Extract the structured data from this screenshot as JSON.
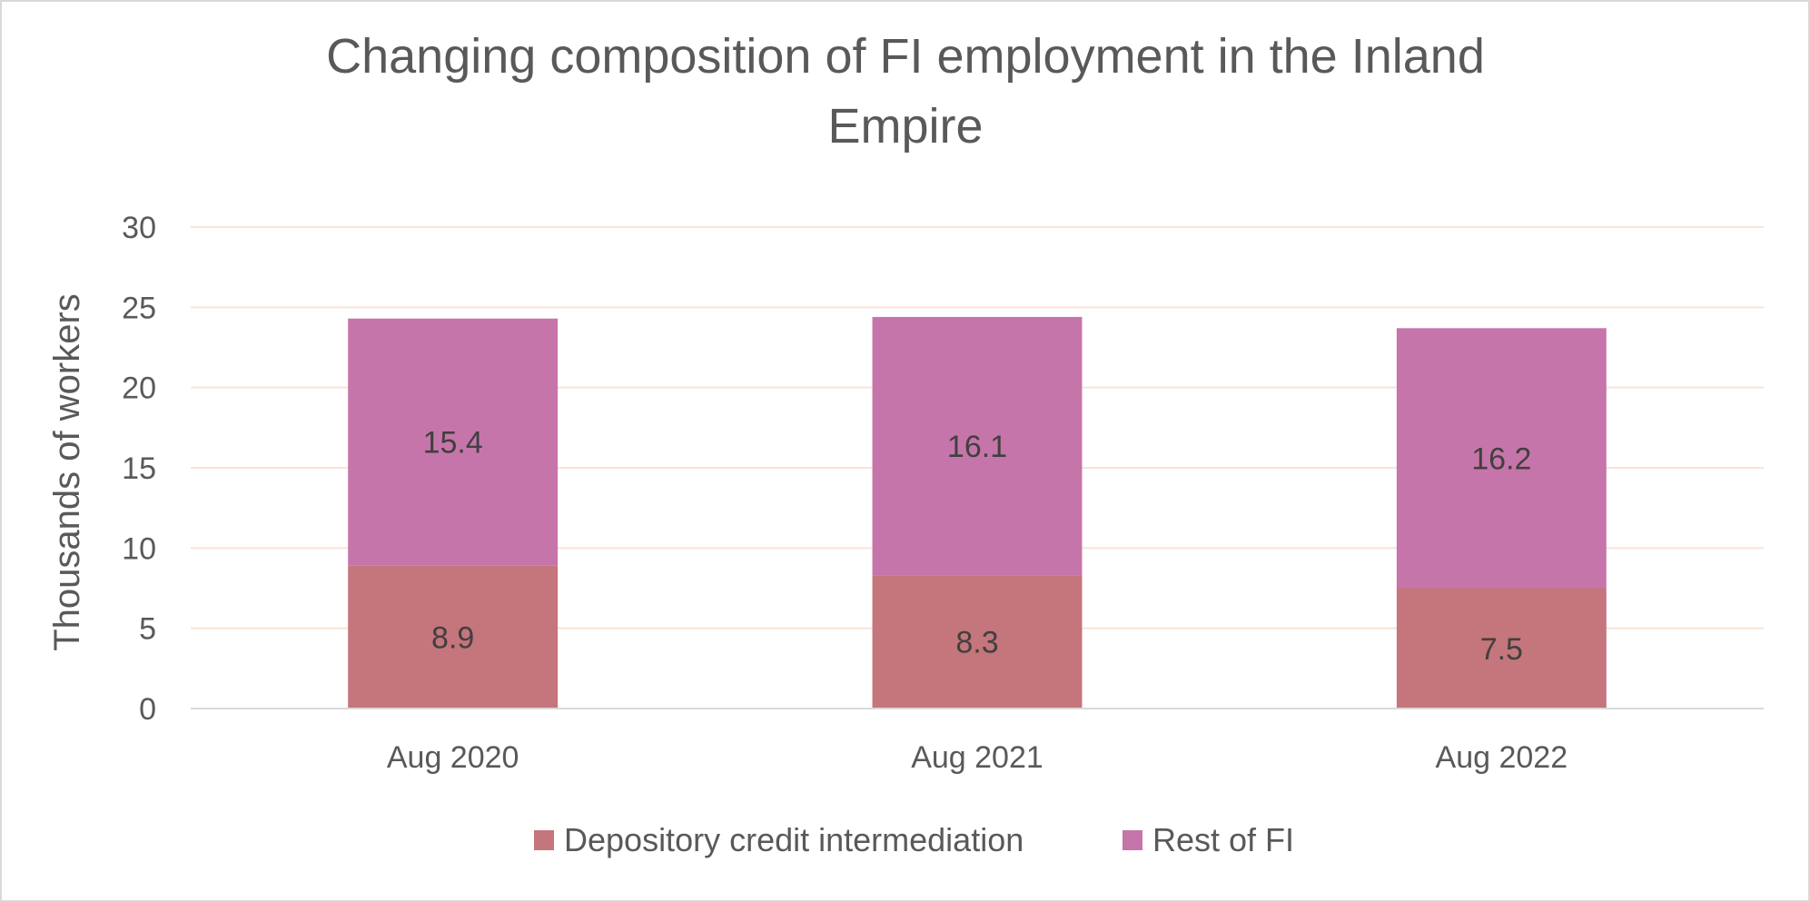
{
  "chart_data": {
    "type": "bar",
    "stacked": true,
    "title_lines": [
      "Changing composition of FI employment in the Inland",
      "Empire"
    ],
    "xlabel": "",
    "ylabel": "Thousands of workers",
    "categories": [
      "Aug 2020",
      "Aug 2021",
      "Aug 2022"
    ],
    "ylim": [
      0,
      30
    ],
    "yticks": [
      0,
      5,
      10,
      15,
      20,
      25,
      30
    ],
    "grid": true,
    "legend_position": "bottom",
    "series": [
      {
        "name": "Depository credit intermediation",
        "values": [
          8.9,
          8.3,
          7.5
        ],
        "labels": [
          "8.9",
          "8.3",
          "7.5"
        ],
        "color": "#c5757c"
      },
      {
        "name": "Rest of FI",
        "values": [
          15.4,
          16.1,
          16.2
        ],
        "labels": [
          "15.4",
          "16.1",
          "16.2"
        ],
        "color": "#c675aa"
      }
    ],
    "colors": {
      "gridline": "#fbe3d6",
      "axis_line": "#d9d9d9",
      "text": "#595959",
      "data_label": "#404040"
    }
  }
}
